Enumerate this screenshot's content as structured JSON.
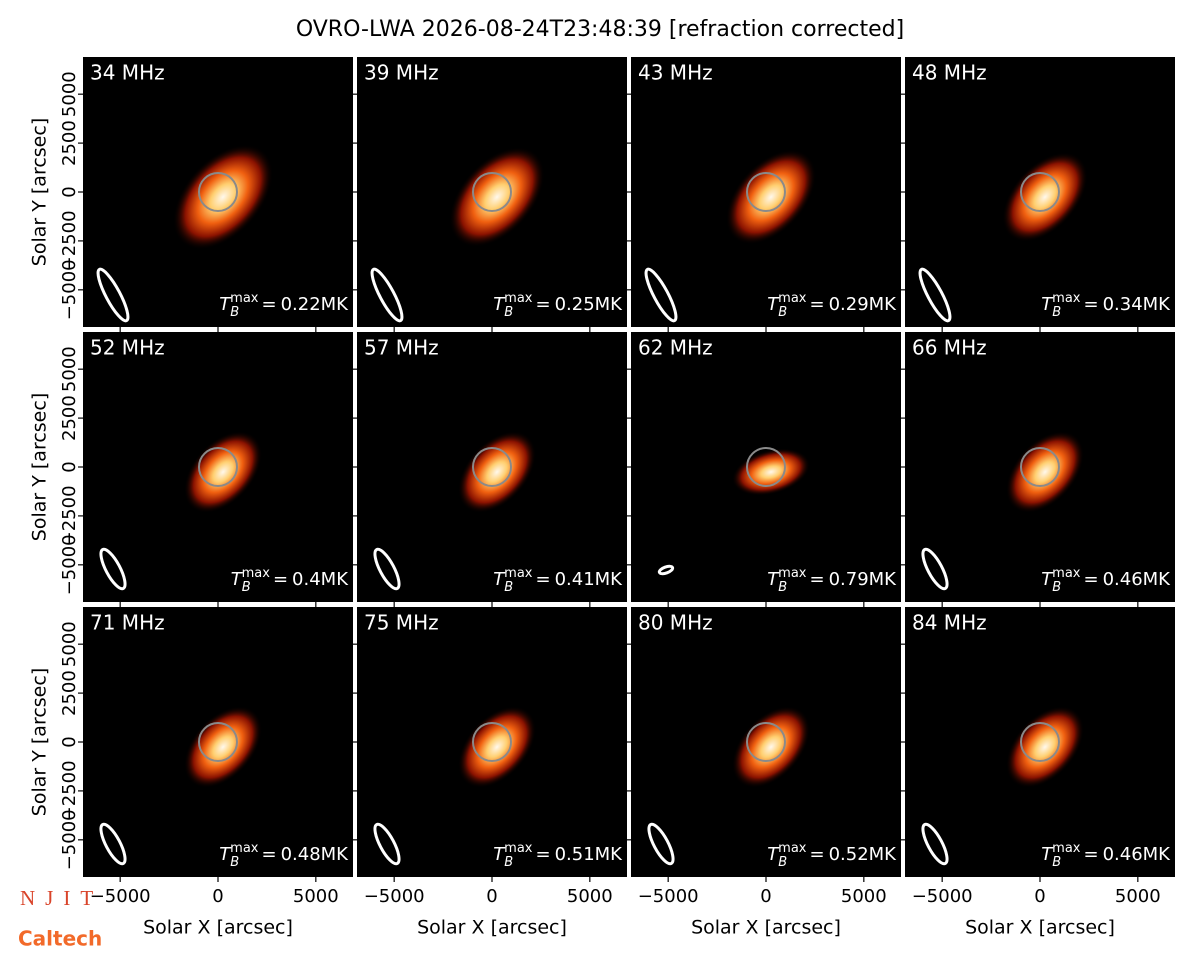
{
  "title": "OVRO-LWA 2026-08-24T23:48:39 [refraction corrected]",
  "xlabel": "Solar X [arcsec]",
  "ylabel": "Solar Y [arcsec]",
  "xlim": [
    -6900,
    6900
  ],
  "ylim": [
    -6900,
    6900
  ],
  "xticks": [
    {
      "value": -5000,
      "label": "−5000"
    },
    0,
    5000
  ],
  "yticks": [
    {
      "value": -5000,
      "label": "−5000"
    },
    {
      "value": -2500,
      "label": "−2500"
    },
    0,
    2500,
    5000
  ],
  "tb_symbol": "T",
  "tb_sub": "B",
  "tb_sup": "max",
  "tb_eq": "=",
  "panels": [
    {
      "label": "34 MHz",
      "tb_value": "0.22MK"
    },
    {
      "label": "39 MHz",
      "tb_value": "0.25MK"
    },
    {
      "label": "43 MHz",
      "tb_value": "0.29MK"
    },
    {
      "label": "48 MHz",
      "tb_value": "0.34MK"
    },
    {
      "label": "52 MHz",
      "tb_value": "0.4MK"
    },
    {
      "label": "57 MHz",
      "tb_value": "0.41MK"
    },
    {
      "label": "62 MHz",
      "tb_value": "0.79MK"
    },
    {
      "label": "66 MHz",
      "tb_value": "0.46MK"
    },
    {
      "label": "71 MHz",
      "tb_value": "0.48MK"
    },
    {
      "label": "75 MHz",
      "tb_value": "0.51MK"
    },
    {
      "label": "80 MHz",
      "tb_value": "0.52MK"
    },
    {
      "label": "84 MHz",
      "tb_value": "0.46MK"
    }
  ],
  "logos": [
    "NJIT",
    "Caltech"
  ]
}
